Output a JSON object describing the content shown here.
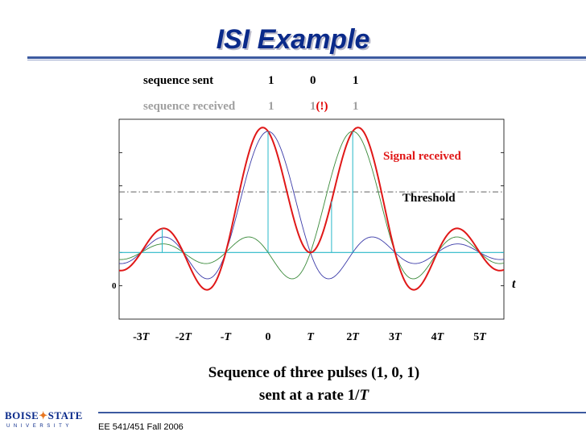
{
  "slide": {
    "title": "ISI Example",
    "footer": "EE 541/451 Fall 2006"
  },
  "sequence": {
    "sent_label": "sequence sent",
    "sent_values": [
      "1",
      "0",
      "1"
    ],
    "received_label": "sequence received",
    "received_values": [
      "1",
      "1",
      "1"
    ],
    "error_flag": "(!)"
  },
  "chart_data": {
    "type": "line",
    "xlabel": "t",
    "x_ticks": [
      "-3T",
      "-2T",
      "-T",
      "0",
      "T",
      "2T",
      "3T",
      "4T",
      "5T"
    ],
    "y_zero_label": "0",
    "ylim": [
      -0.55,
      1.1
    ],
    "threshold": 0.5,
    "series": [
      {
        "name": "",
        "pulse_center_T": 0,
        "amplitude": 1,
        "color": "#3a3aa8"
      },
      {
        "name": "",
        "pulse_center_T": 2,
        "amplitude": 1,
        "color": "#3a8a3a"
      },
      {
        "name": "Signal received",
        "color": "#e01818"
      }
    ],
    "annotations": {
      "signal_label": "Signal received",
      "threshold_label": "Threshold"
    },
    "colors": {
      "signal": "#e01818",
      "threshold": "#606060",
      "samples": "#28b8c8",
      "axis": "#28b8c8"
    }
  },
  "caption": {
    "line1": "Sequence of three pulses (1, 0, 1)",
    "line2_prefix": "sent at a rate 1/",
    "line2_var": "T"
  },
  "logo": {
    "word_left": "BOISE",
    "word_right": "STATE",
    "sub": "UNIVERSITY"
  }
}
